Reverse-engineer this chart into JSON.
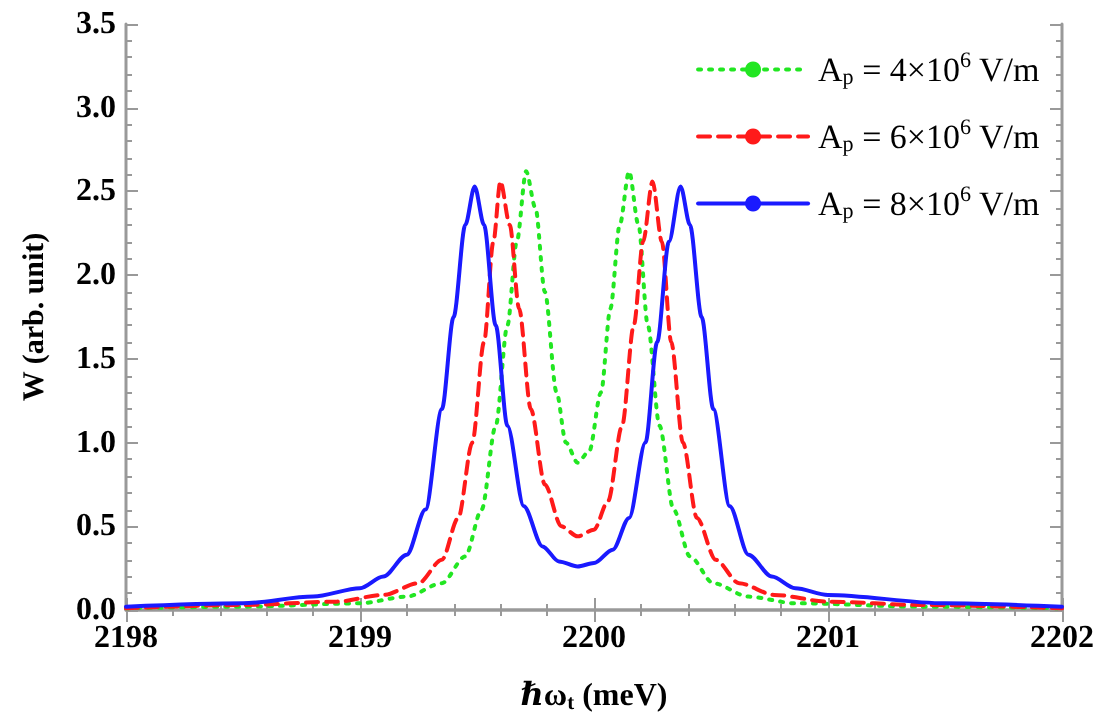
{
  "chart_data": {
    "type": "line",
    "xlabel": "ℏω$_{t}$ (meV)",
    "ylabel": "W (arb. unit)",
    "xlim": [
      2198,
      2202
    ],
    "xticks": [
      2198,
      2199,
      2200,
      2201,
      2202
    ],
    "ylim": [
      0,
      3.5
    ],
    "yticks": [
      {
        "value": 0,
        "label": "0.0"
      },
      0.5,
      {
        "value": 1,
        "label": "1.0"
      },
      1.5,
      {
        "value": 2,
        "label": "2.0"
      },
      2.5,
      {
        "value": 3,
        "label": "3.0"
      },
      3.5
    ],
    "grid": false,
    "legend": "top right",
    "marker": "none",
    "series": [
      {
        "name": "A$_{p}$ = 4×10$^{6}$ V/m",
        "color": "#22e622",
        "line_style": "dotted",
        "x": [
          2198,
          2198.5,
          2199.0,
          2199.2,
          2199.35,
          2199.45,
          2199.52,
          2199.58,
          2199.63,
          2199.67,
          2199.71,
          2199.75,
          2199.79,
          2199.84,
          2199.88,
          2199.93,
          2199.98,
          2200.03,
          2200.07,
          2200.11,
          2200.15,
          2200.19,
          2200.23,
          2200.28,
          2200.34,
          2200.41,
          2200.51,
          2200.66,
          2200.86,
          2201.4,
          2202
        ],
        "values": [
          0.01,
          0.02,
          0.04,
          0.08,
          0.16,
          0.32,
          0.6,
          1.1,
          1.7,
          2.2,
          2.62,
          2.4,
          1.9,
          1.3,
          1.0,
          0.88,
          0.95,
          1.3,
          1.8,
          2.3,
          2.62,
          2.3,
          1.7,
          1.1,
          0.6,
          0.32,
          0.16,
          0.08,
          0.04,
          0.02,
          0.01
        ]
      },
      {
        "name": "A$_{p}$ = 6×10$^{6}$ V/m",
        "color": "#ff1a1a",
        "line_style": "dashed",
        "x": [
          2198,
          2198.5,
          2198.9,
          2199.1,
          2199.25,
          2199.35,
          2199.42,
          2199.48,
          2199.53,
          2199.57,
          2199.6,
          2199.64,
          2199.68,
          2199.73,
          2199.79,
          2199.86,
          2199.93,
          2200.0,
          2200.06,
          2200.12,
          2200.17,
          2200.21,
          2200.25,
          2200.29,
          2200.33,
          2200.38,
          2200.44,
          2200.52,
          2200.62,
          2200.77,
          2201.0,
          2201.4,
          2202
        ],
        "values": [
          0.01,
          0.03,
          0.05,
          0.09,
          0.16,
          0.3,
          0.55,
          1.0,
          1.6,
          2.2,
          2.56,
          2.3,
          1.8,
          1.2,
          0.75,
          0.5,
          0.44,
          0.48,
          0.65,
          1.1,
          1.7,
          2.2,
          2.56,
          2.2,
          1.6,
          1.0,
          0.55,
          0.3,
          0.16,
          0.09,
          0.05,
          0.03,
          0.01
        ]
      },
      {
        "name": "A$_{p}$ = 8×10$^{6}$ V/m",
        "color": "#1a1aff",
        "line_style": "solid",
        "x": [
          2198,
          2198.5,
          2198.8,
          2199.0,
          2199.1,
          2199.2,
          2199.28,
          2199.35,
          2199.4,
          2199.45,
          2199.49,
          2199.53,
          2199.58,
          2199.63,
          2199.7,
          2199.78,
          2199.85,
          2199.93,
          2200.0,
          2200.08,
          2200.15,
          2200.22,
          2200.27,
          2200.32,
          2200.37,
          2200.41,
          2200.46,
          2200.51,
          2200.58,
          2200.66,
          2200.76,
          2200.86,
          2201.0,
          2201.5,
          2202
        ],
        "values": [
          0.02,
          0.04,
          0.08,
          0.13,
          0.2,
          0.33,
          0.6,
          1.2,
          1.75,
          2.3,
          2.53,
          2.3,
          1.7,
          1.1,
          0.62,
          0.38,
          0.29,
          0.26,
          0.28,
          0.36,
          0.55,
          1.0,
          1.6,
          2.2,
          2.53,
          2.3,
          1.75,
          1.2,
          0.62,
          0.33,
          0.2,
          0.13,
          0.09,
          0.04,
          0.02
        ]
      }
    ]
  }
}
